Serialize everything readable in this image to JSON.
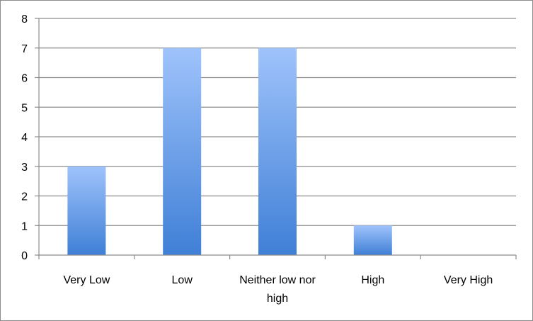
{
  "chart_data": {
    "type": "bar",
    "categories": [
      "Very Low",
      "Low",
      "Neither low nor high",
      "High",
      "Very High"
    ],
    "category_lines": [
      [
        "Very Low"
      ],
      [
        "Low"
      ],
      [
        "Neither low nor",
        "high"
      ],
      [
        "High"
      ],
      [
        "Very High"
      ]
    ],
    "values": [
      3,
      7,
      7,
      1,
      0
    ],
    "ylim": [
      0,
      8
    ],
    "yticks": [
      0,
      1,
      2,
      3,
      4,
      5,
      6,
      7,
      8
    ],
    "title": "",
    "xlabel": "",
    "ylabel": "",
    "grid": true,
    "legend": "none"
  },
  "colors": {
    "bar_top": "#9fc3fb",
    "bar_bottom": "#3f7fd6",
    "grid": "#8c8c8c",
    "axis": "#8c8c8c",
    "border": "#8c8c8c"
  }
}
